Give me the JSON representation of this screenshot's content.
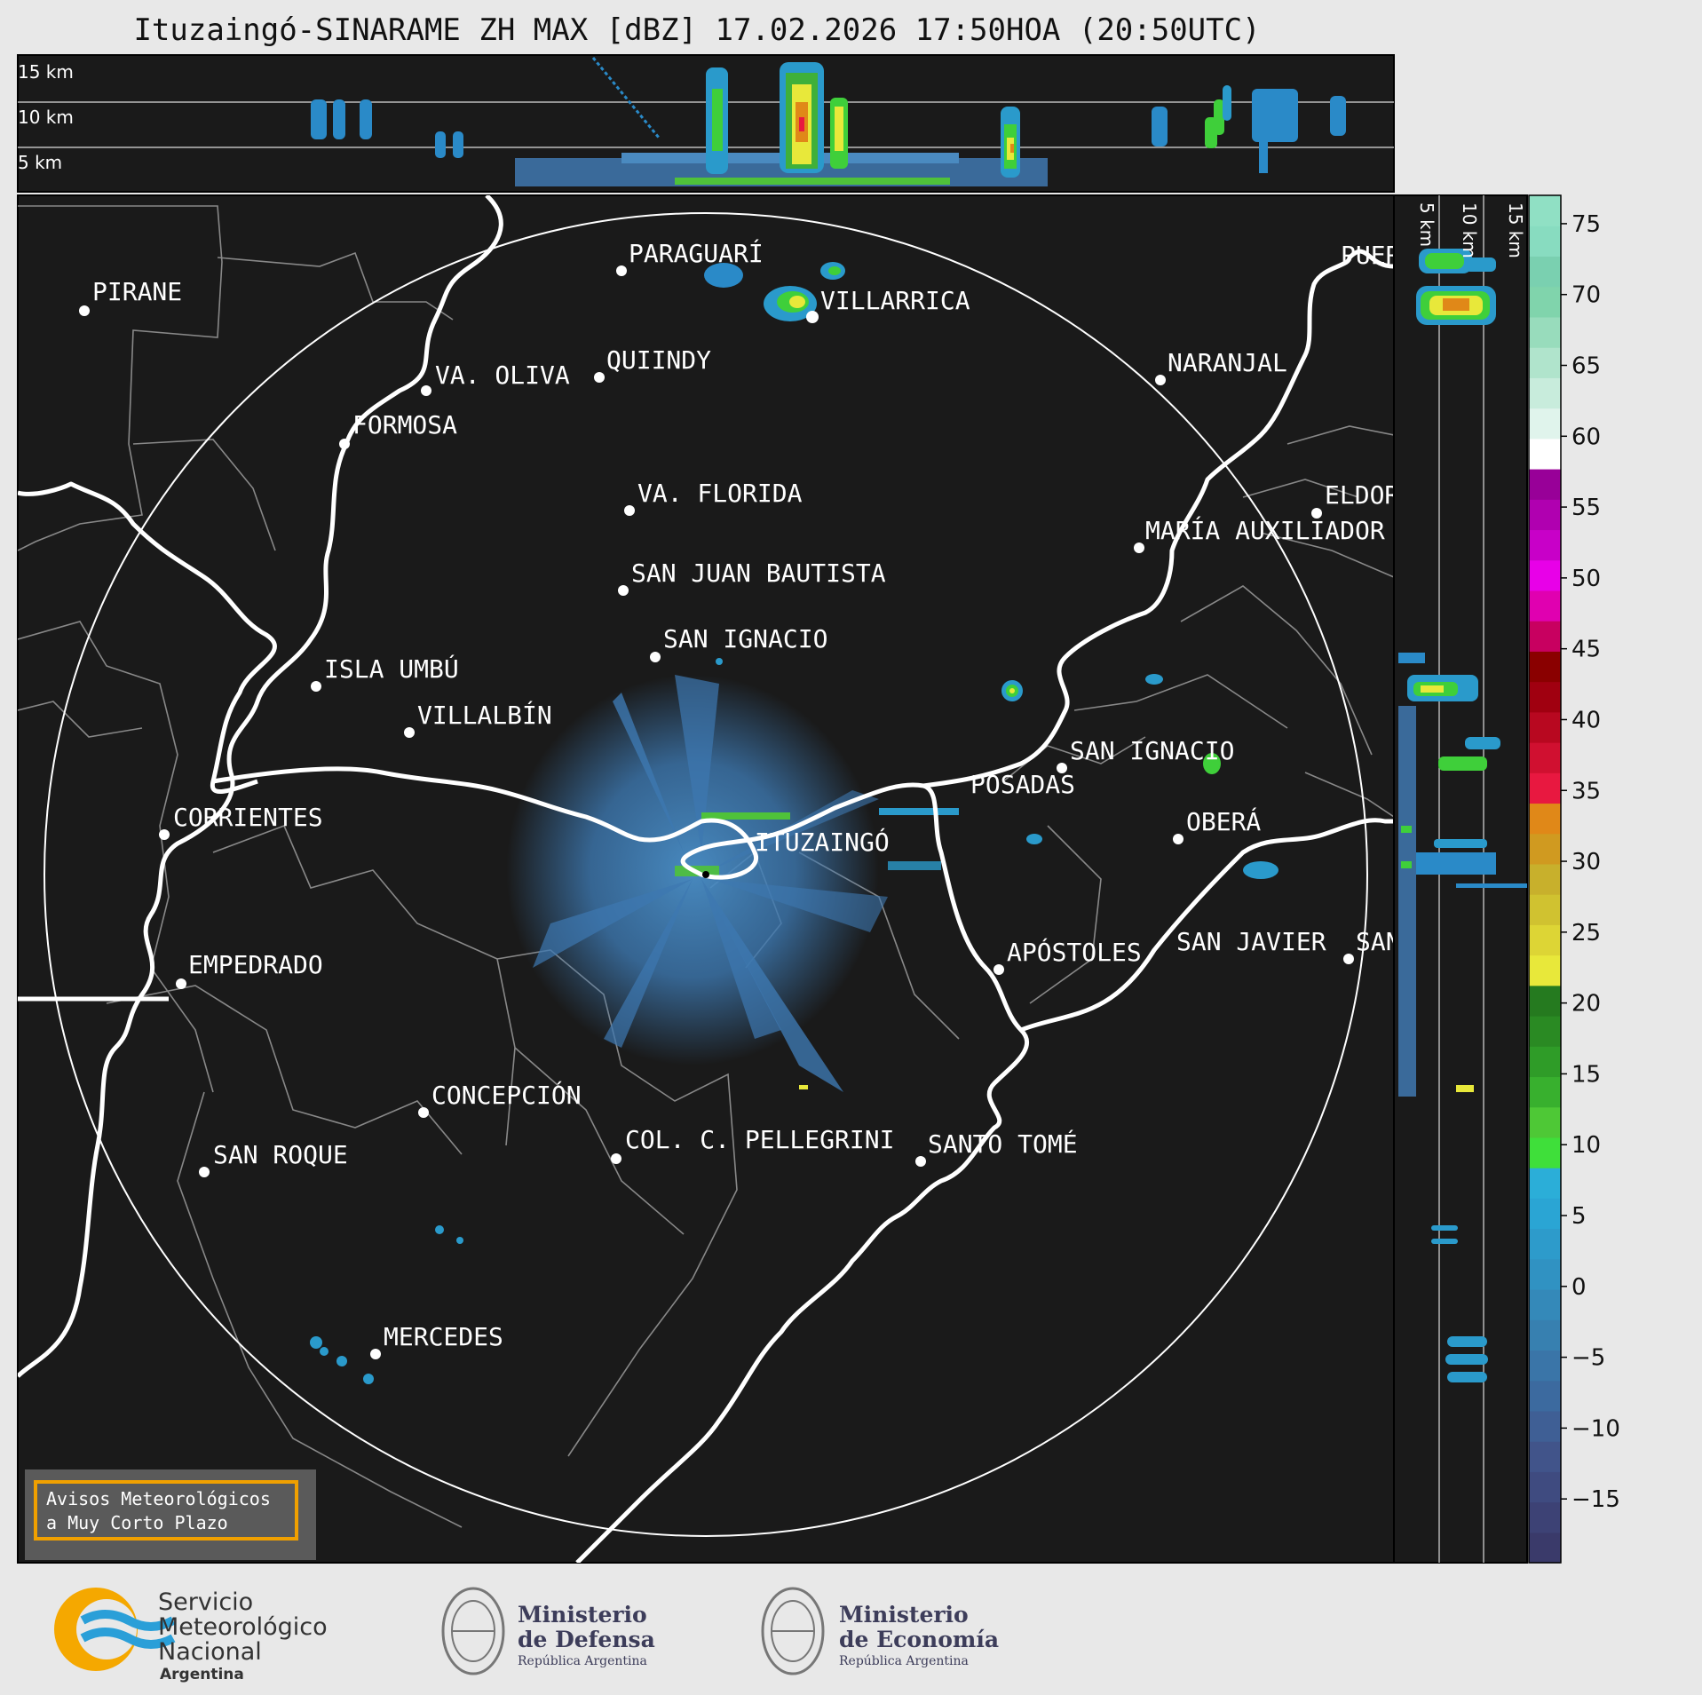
{
  "title": "Ituzaingó-SINARAME ZH MAX [dBZ] 17.02.2026 17:50HOA (20:50UTC)",
  "top_panel": {
    "height_labels": [
      "15 km",
      "10 km",
      "5 km"
    ]
  },
  "side_panel": {
    "height_labels": [
      "5 km",
      "10 km",
      "15 km"
    ]
  },
  "radar_site": "ITUZAINGÓ",
  "cities": [
    {
      "name": "PARAGUARÍ"
    },
    {
      "name": "PIRANE"
    },
    {
      "name": "VILLARRICA"
    },
    {
      "name": "QUIINDY"
    },
    {
      "name": "VA. OLIVA"
    },
    {
      "name": "NARANJAL"
    },
    {
      "name": "FORMOSA"
    },
    {
      "name": "VA. FLORIDA"
    },
    {
      "name": "ELDOR"
    },
    {
      "name": "MARÍA AUXILIADOR"
    },
    {
      "name": "SAN JUAN BAUTISTA"
    },
    {
      "name": "SAN IGNACIO"
    },
    {
      "name": "ISLA UMBÚ"
    },
    {
      "name": "VILLALBÍN"
    },
    {
      "name": "SAN IGNACIO"
    },
    {
      "name": "POSADAS"
    },
    {
      "name": "CORRIENTES"
    },
    {
      "name": "ITUZAINGÓ"
    },
    {
      "name": "OBERÁ"
    },
    {
      "name": "EMPEDRADO"
    },
    {
      "name": "APÓSTOLES"
    },
    {
      "name": "SAN JAVIER"
    },
    {
      "name": "SAN"
    },
    {
      "name": "CONCEPCIÓN"
    },
    {
      "name": "COL. C. PELLEGRINI"
    },
    {
      "name": "SANTO TOMÉ"
    },
    {
      "name": "SAN ROQUE"
    },
    {
      "name": "MERCEDES"
    },
    {
      "name": "PUER"
    }
  ],
  "colorbar": {
    "ticks": [
      "75",
      "70",
      "65",
      "60",
      "55",
      "50",
      "45",
      "40",
      "35",
      "30",
      "25",
      "20",
      "15",
      "10",
      "5",
      "0",
      "−5",
      "−10",
      "−15"
    ],
    "colors": [
      "#3a3a6a",
      "#3d4275",
      "#3f4b80",
      "#41548a",
      "#3f5f95",
      "#3c6a9f",
      "#3a75a8",
      "#3780b0",
      "#3489b9",
      "#3092c2",
      "#2d9bcb",
      "#2aa5d4",
      "#2baed8",
      "#3fdf3a",
      "#4ec836",
      "#38b02e",
      "#2f9c28",
      "#2a8a23",
      "#257a1f",
      "#e8e83a",
      "#ddd535",
      "#d0c230",
      "#c8b02c",
      "#d09a20",
      "#e08818",
      "#e81840",
      "#d01030",
      "#b80820",
      "#a00010",
      "#8a0000",
      "#c80060",
      "#e000b0",
      "#e800e8",
      "#c800c8",
      "#b000b0",
      "#980098",
      "#ffffff",
      "#e0f4ec",
      "#c8ecdc",
      "#b0e4cc",
      "#98dcbc",
      "#80d4ac",
      "#7ad0b0",
      "#88dcc0",
      "#90e0c4"
    ]
  },
  "warning_box": {
    "line1": "Avisos Meteorológicos",
    "line2": "a Muy Corto Plazo"
  },
  "logos": {
    "smn": {
      "line1": "Servicio",
      "line2": "Meteorológico",
      "line3": "Nacional",
      "line4": "Argentina"
    },
    "defensa": {
      "line1": "Ministerio",
      "line2": "de Defensa",
      "line3": "República Argentina"
    },
    "economia": {
      "line1": "Ministerio",
      "line2": "de Economía",
      "line3": "República Argentina"
    }
  },
  "colors": {
    "map_bg": "#1a1a1a",
    "river": "#ffffff",
    "border": "#888888",
    "warning_border": "#f0a000",
    "smn_blue": "#2a9fd8",
    "smn_orange": "#f5a800"
  }
}
